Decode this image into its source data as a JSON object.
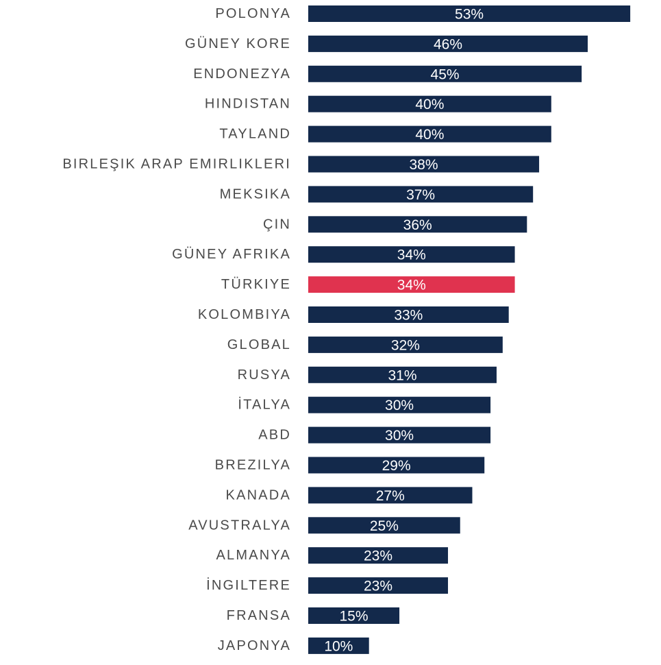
{
  "chart_data": {
    "type": "bar",
    "orientation": "horizontal",
    "title": "",
    "xlabel": "",
    "ylabel": "",
    "xlim": [
      0,
      55
    ],
    "grid": false,
    "legend": "none",
    "colors": {
      "bar": "#13294b",
      "highlight": "#e0334f",
      "label_text": "#4a4a4a",
      "value_text": "#ffffff"
    },
    "highlight_category": "TÜRKIYE",
    "categories": [
      "POLONYA",
      "GÜNEY KORE",
      "ENDONEZYA",
      "HINDISTAN",
      "TAYLAND",
      "BIRLEŞIK ARAP EMIRLIKLERI",
      "MEKSIKA",
      "ÇIN",
      "GÜNEY AFRIKA",
      "TÜRKIYE",
      "KOLOMBIYA",
      "GLOBAL",
      "RUSYA",
      "İTALYA",
      "ABD",
      "BREZILYA",
      "KANADA",
      "AVUSTRALYA",
      "ALMANYA",
      "İNGILTERE",
      "FRANSA",
      "JAPONYA"
    ],
    "values": [
      53,
      46,
      45,
      40,
      40,
      38,
      37,
      36,
      34,
      34,
      33,
      32,
      31,
      30,
      30,
      29,
      27,
      25,
      23,
      23,
      15,
      10
    ],
    "value_labels": [
      "53%",
      "46%",
      "45%",
      "40%",
      "40%",
      "38%",
      "37%",
      "36%",
      "34%",
      "34%",
      "33%",
      "32%",
      "31%",
      "30%",
      "30%",
      "29%",
      "27%",
      "25%",
      "23%",
      "23%",
      "15%",
      "10%"
    ]
  }
}
